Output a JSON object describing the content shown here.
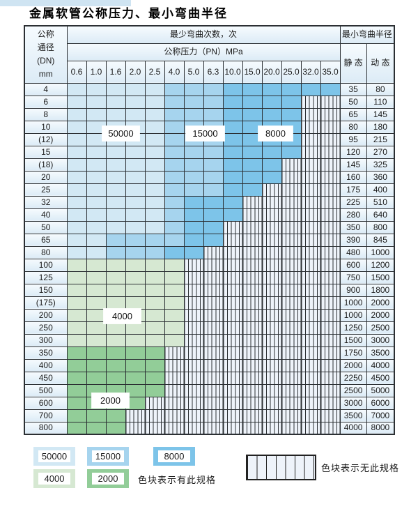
{
  "page": {
    "title": "金属软管公称压力、最小弯曲半径"
  },
  "colors": {
    "c50000": "#d2e8f4",
    "c15000": "#a6d4ee",
    "c8000": "#7dc4e9",
    "c4000": "#d6e8d2",
    "c2000": "#92cd98",
    "hatchbg": "#eef3fa",
    "border": "#2b2f33"
  },
  "table": {
    "corner_lines": [
      "公称",
      "通径",
      "(DN)",
      "mm"
    ],
    "bend_header": "最少弯曲次数，次",
    "pressure_header": "公称压力（PN）MPa",
    "radius_header": "最小弯曲半径",
    "static_label": "静 态",
    "dynamic_label": "动 态",
    "pressures": [
      "0.6",
      "1.0",
      "1.6",
      "2.0",
      "2.5",
      "4.0",
      "5.0",
      "6.3",
      "10.0",
      "15.0",
      "20.0",
      "25.0",
      "32.0",
      "35.0"
    ],
    "rows": [
      {
        "dn": "4",
        "static": "35",
        "dynamic": "80",
        "bands": [
          [
            "c50000",
            5
          ],
          [
            "c15000",
            3
          ],
          [
            "c8000",
            6
          ]
        ]
      },
      {
        "dn": "6",
        "static": "50",
        "dynamic": "110",
        "bands": [
          [
            "c50000",
            5
          ],
          [
            "c15000",
            3
          ],
          [
            "c8000",
            4
          ]
        ]
      },
      {
        "dn": "8",
        "static": "65",
        "dynamic": "145",
        "bands": [
          [
            "c50000",
            5
          ],
          [
            "c15000",
            3
          ],
          [
            "c8000",
            4
          ]
        ]
      },
      {
        "dn": "10",
        "static": "80",
        "dynamic": "180",
        "bands": [
          [
            "c50000",
            5
          ],
          [
            "c15000",
            3
          ],
          [
            "c8000",
            4
          ]
        ]
      },
      {
        "dn": "(12)",
        "static": "95",
        "dynamic": "215",
        "bands": [
          [
            "c50000",
            5
          ],
          [
            "c15000",
            3
          ],
          [
            "c8000",
            4
          ]
        ]
      },
      {
        "dn": "15",
        "static": "120",
        "dynamic": "270",
        "bands": [
          [
            "c50000",
            5
          ],
          [
            "c15000",
            3
          ],
          [
            "c8000",
            4
          ]
        ]
      },
      {
        "dn": "(18)",
        "static": "145",
        "dynamic": "325",
        "bands": [
          [
            "c50000",
            5
          ],
          [
            "c15000",
            3
          ],
          [
            "c8000",
            3
          ]
        ]
      },
      {
        "dn": "20",
        "static": "160",
        "dynamic": "360",
        "bands": [
          [
            "c50000",
            5
          ],
          [
            "c15000",
            3
          ],
          [
            "c8000",
            3
          ]
        ]
      },
      {
        "dn": "25",
        "static": "175",
        "dynamic": "400",
        "bands": [
          [
            "c50000",
            5
          ],
          [
            "c15000",
            3
          ],
          [
            "c8000",
            2
          ]
        ]
      },
      {
        "dn": "32",
        "static": "225",
        "dynamic": "510",
        "bands": [
          [
            "c50000",
            5
          ],
          [
            "c15000",
            1
          ],
          [
            "c8000",
            3
          ]
        ]
      },
      {
        "dn": "40",
        "static": "280",
        "dynamic": "640",
        "bands": [
          [
            "c50000",
            5
          ],
          [
            "c15000",
            1
          ],
          [
            "c8000",
            3
          ]
        ]
      },
      {
        "dn": "50",
        "static": "350",
        "dynamic": "800",
        "bands": [
          [
            "c50000",
            5
          ],
          [
            "c15000",
            1
          ],
          [
            "c8000",
            2
          ]
        ]
      },
      {
        "dn": "65",
        "static": "390",
        "dynamic": "845",
        "bands": [
          [
            "c50000",
            2
          ],
          [
            "c15000",
            4
          ],
          [
            "c8000",
            2
          ]
        ]
      },
      {
        "dn": "80",
        "static": "480",
        "dynamic": "1000",
        "bands": [
          [
            "c50000",
            2
          ],
          [
            "c15000",
            3
          ],
          [
            "c8000",
            2
          ]
        ]
      },
      {
        "dn": "100",
        "static": "600",
        "dynamic": "1200",
        "bands": [
          [
            "c4000",
            6
          ]
        ]
      },
      {
        "dn": "125",
        "static": "750",
        "dynamic": "1500",
        "bands": [
          [
            "c4000",
            6
          ]
        ]
      },
      {
        "dn": "150",
        "static": "900",
        "dynamic": "1800",
        "bands": [
          [
            "c4000",
            6
          ]
        ]
      },
      {
        "dn": "(175)",
        "static": "1000",
        "dynamic": "2000",
        "bands": [
          [
            "c4000",
            6
          ]
        ]
      },
      {
        "dn": "200",
        "static": "1000",
        "dynamic": "2000",
        "bands": [
          [
            "c4000",
            6
          ]
        ]
      },
      {
        "dn": "250",
        "static": "1250",
        "dynamic": "2500",
        "bands": [
          [
            "c4000",
            6
          ]
        ]
      },
      {
        "dn": "300",
        "static": "1500",
        "dynamic": "3000",
        "bands": [
          [
            "c4000",
            6
          ]
        ]
      },
      {
        "dn": "350",
        "static": "1750",
        "dynamic": "3500",
        "bands": [
          [
            "c2000",
            5
          ]
        ]
      },
      {
        "dn": "400",
        "static": "2000",
        "dynamic": "4000",
        "bands": [
          [
            "c2000",
            5
          ]
        ]
      },
      {
        "dn": "450",
        "static": "2250",
        "dynamic": "4500",
        "bands": [
          [
            "c2000",
            5
          ]
        ]
      },
      {
        "dn": "500",
        "static": "2500",
        "dynamic": "5000",
        "bands": [
          [
            "c2000",
            5
          ]
        ]
      },
      {
        "dn": "600",
        "static": "3000",
        "dynamic": "6000",
        "bands": [
          [
            "c2000",
            4
          ]
        ]
      },
      {
        "dn": "700",
        "static": "3500",
        "dynamic": "7000",
        "bands": [
          [
            "c2000",
            3
          ]
        ]
      },
      {
        "dn": "800",
        "static": "4000",
        "dynamic": "8000",
        "bands": [
          [
            "c2000",
            3
          ]
        ]
      }
    ]
  },
  "legend": {
    "items": [
      {
        "value": "50000",
        "type": "c50000"
      },
      {
        "value": "15000",
        "type": "c15000"
      },
      {
        "value": "8000",
        "type": "c8000"
      },
      {
        "value": "4000",
        "type": "c4000"
      },
      {
        "value": "2000",
        "type": "c2000"
      }
    ],
    "has_spec_note": "色块表示有此规格",
    "no_spec_note": "色块表示无此规格"
  }
}
